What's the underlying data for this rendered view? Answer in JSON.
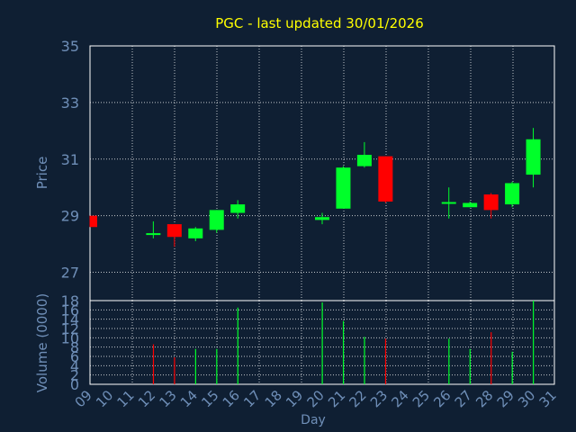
{
  "colors": {
    "background": "#0f1f33",
    "title": "#ffff00",
    "axis_text": "#6f8fb8",
    "frame": "#ffffff",
    "grid": "#ffffff",
    "up": "#00ff2a",
    "down": "#ff0000"
  },
  "chart_data": [
    {
      "type": "candlestick",
      "title": "PGC - last updated 30/01/2026",
      "ylabel": "Price",
      "ylim": [
        26,
        35
      ],
      "yticks": [
        27,
        29,
        31,
        33,
        35
      ],
      "grid": true,
      "candles": [
        {
          "day": "09",
          "open": 29.0,
          "high": 29.0,
          "low": 28.6,
          "close": 28.6
        },
        {
          "day": "12",
          "open": 28.35,
          "high": 28.8,
          "low": 28.2,
          "close": 28.35
        },
        {
          "day": "13",
          "open": 28.7,
          "high": 28.7,
          "low": 27.9,
          "close": 28.25
        },
        {
          "day": "14",
          "open": 28.2,
          "high": 28.6,
          "low": 28.1,
          "close": 28.55
        },
        {
          "day": "15",
          "open": 28.5,
          "high": 29.2,
          "low": 28.4,
          "close": 29.2
        },
        {
          "day": "16",
          "open": 29.1,
          "high": 29.55,
          "low": 28.9,
          "close": 29.4
        },
        {
          "day": "20",
          "open": 28.85,
          "high": 29.1,
          "low": 28.7,
          "close": 28.95
        },
        {
          "day": "21",
          "open": 29.25,
          "high": 30.75,
          "low": 29.25,
          "close": 30.7
        },
        {
          "day": "22",
          "open": 30.75,
          "high": 31.6,
          "low": 30.7,
          "close": 31.15
        },
        {
          "day": "23",
          "open": 31.1,
          "high": 31.1,
          "low": 29.45,
          "close": 29.5
        },
        {
          "day": "26",
          "open": 29.4,
          "high": 30.0,
          "low": 28.9,
          "close": 29.45
        },
        {
          "day": "27",
          "open": 29.3,
          "high": 29.5,
          "low": 29.3,
          "close": 29.45
        },
        {
          "day": "28",
          "open": 29.75,
          "high": 29.8,
          "low": 28.9,
          "close": 29.2
        },
        {
          "day": "29",
          "open": 29.4,
          "high": 30.2,
          "low": 29.3,
          "close": 30.15
        },
        {
          "day": "30",
          "open": 30.45,
          "high": 32.1,
          "low": 30.0,
          "close": 31.7
        }
      ]
    },
    {
      "type": "bar",
      "ylabel": "Volume (0000)",
      "xlabel": "Day",
      "ylim": [
        0,
        18
      ],
      "yticks": [
        0,
        2,
        4,
        6,
        8,
        10,
        12,
        14,
        16,
        18
      ],
      "categories": [
        "09",
        "10",
        "11",
        "12",
        "13",
        "14",
        "15",
        "16",
        "17",
        "18",
        "19",
        "20",
        "21",
        "22",
        "23",
        "24",
        "25",
        "26",
        "27",
        "28",
        "29",
        "30",
        "31"
      ],
      "grid": true,
      "bars": [
        {
          "day": "12",
          "value": 8.6,
          "direction": "down"
        },
        {
          "day": "13",
          "value": 5.8,
          "direction": "down"
        },
        {
          "day": "14",
          "value": 7.6,
          "direction": "up"
        },
        {
          "day": "15",
          "value": 7.6,
          "direction": "up"
        },
        {
          "day": "16",
          "value": 16.5,
          "direction": "up"
        },
        {
          "day": "20",
          "value": 17.6,
          "direction": "up"
        },
        {
          "day": "21",
          "value": 13.6,
          "direction": "up"
        },
        {
          "day": "22",
          "value": 10.2,
          "direction": "up"
        },
        {
          "day": "23",
          "value": 9.8,
          "direction": "down"
        },
        {
          "day": "26",
          "value": 9.8,
          "direction": "up"
        },
        {
          "day": "27",
          "value": 7.6,
          "direction": "up"
        },
        {
          "day": "28",
          "value": 11.2,
          "direction": "down"
        },
        {
          "day": "29",
          "value": 7.0,
          "direction": "up"
        },
        {
          "day": "30",
          "value": 18.0,
          "direction": "up"
        }
      ]
    }
  ]
}
